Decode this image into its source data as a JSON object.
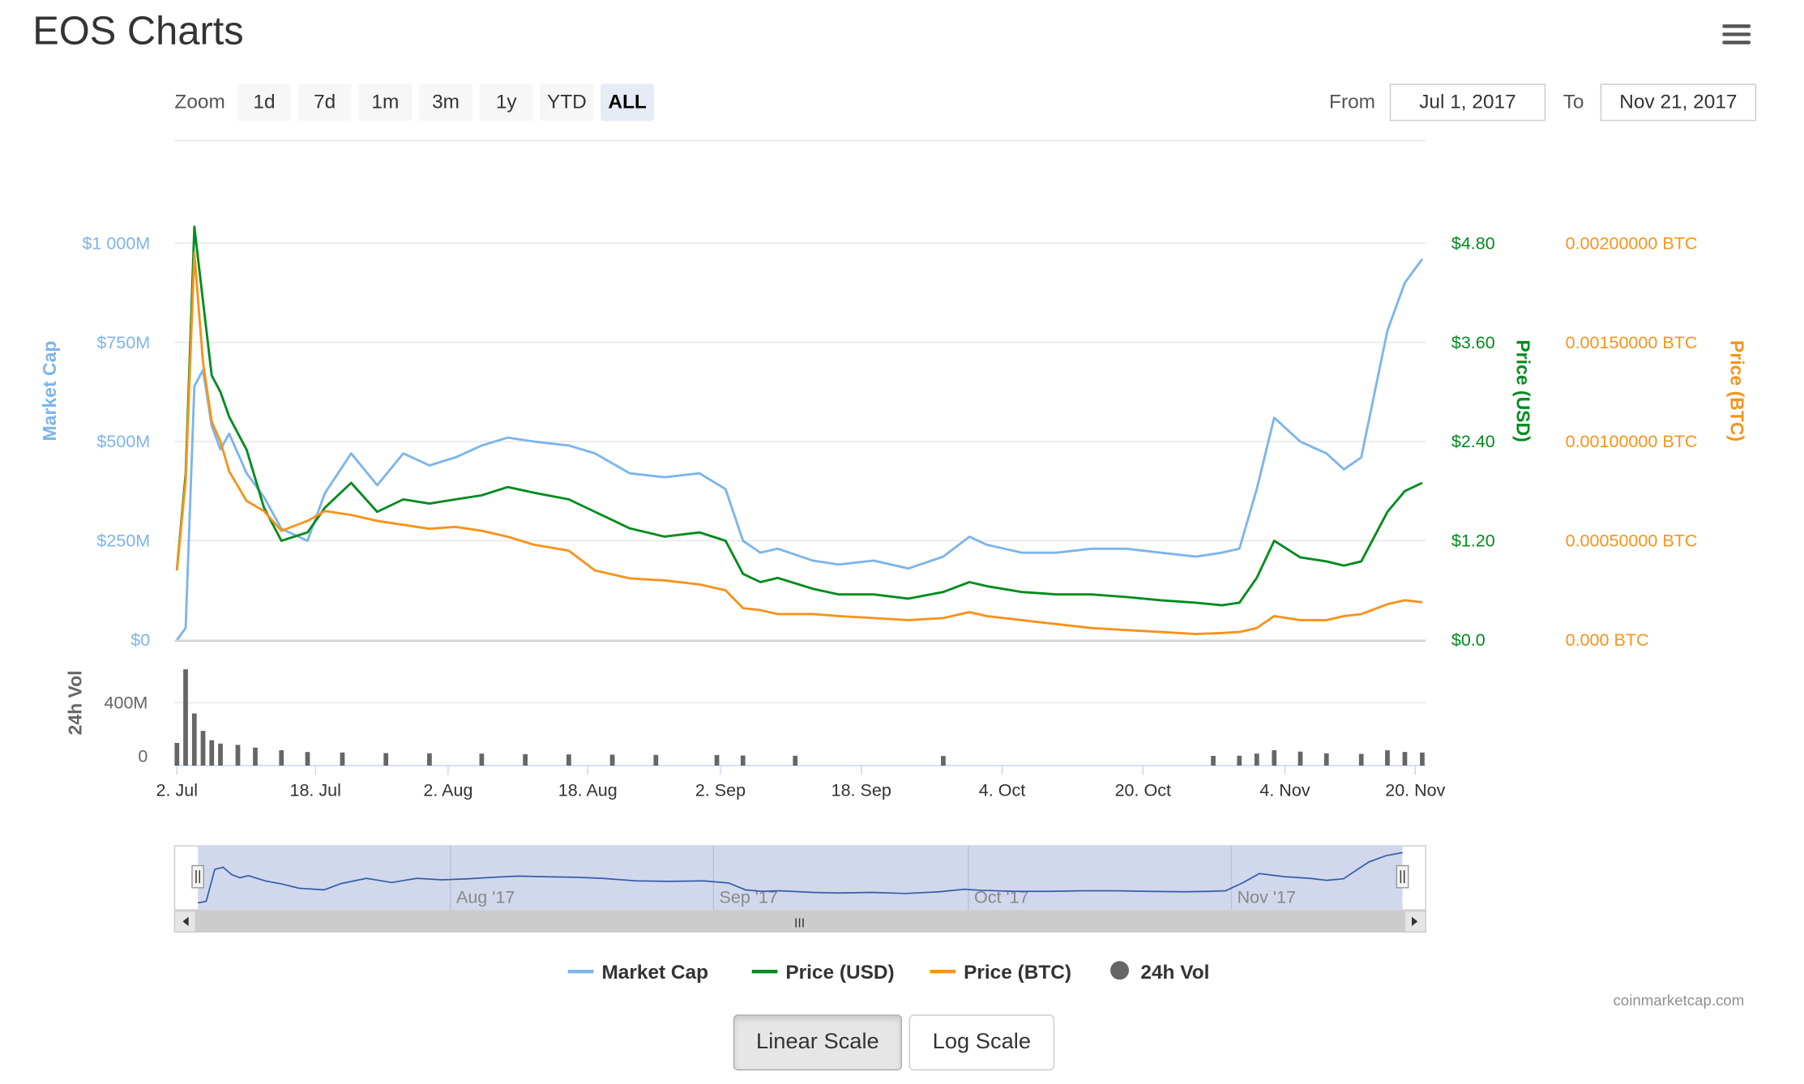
{
  "header": {
    "title": "EOS Charts",
    "menu_icon": "hamburger-menu-icon"
  },
  "range_selector": {
    "zoom_label": "Zoom",
    "buttons": [
      "1d",
      "7d",
      "1m",
      "3m",
      "1y",
      "YTD",
      "ALL"
    ],
    "active": "ALL",
    "from_label": "From",
    "from_value": "Jul 1, 2017",
    "to_label": "To",
    "to_value": "Nov 21, 2017"
  },
  "chart_data": {
    "type": "line",
    "x_axis": {
      "type": "datetime",
      "range": [
        "2017-07-01",
        "2017-11-21"
      ],
      "tick_labels": [
        "2. Jul",
        "18. Jul",
        "2. Aug",
        "18. Aug",
        "2. Sep",
        "18. Sep",
        "4. Oct",
        "20. Oct",
        "4. Nov",
        "20. Nov"
      ]
    },
    "y_axes": [
      {
        "title": "Market Cap",
        "range": [
          0,
          1000
        ],
        "unit": "$M",
        "tick_labels": [
          "$1 000M",
          "$750M",
          "$500M",
          "$250M",
          "$0"
        ],
        "color": "#7cb5ec",
        "position": "left"
      },
      {
        "title": "Price (USD)",
        "range": [
          0,
          4.8
        ],
        "tick_labels": [
          "$4.80",
          "$3.60",
          "$2.40",
          "$1.20",
          "$0.0"
        ],
        "color": "#008c1e",
        "position": "right"
      },
      {
        "title": "Price (BTC)",
        "range": [
          0,
          0.002
        ],
        "tick_labels": [
          "0.00200000 BTC",
          "0.00150000 BTC",
          "0.00100000 BTC",
          "0.00050000 BTC",
          "0.000 BTC"
        ],
        "color": "#f7931a",
        "position": "right"
      },
      {
        "title": "24h Vol",
        "range": [
          0,
          600
        ],
        "unit": "M",
        "tick_labels": [
          "400M",
          "0"
        ],
        "color": "#666666",
        "position": "left"
      }
    ],
    "grid": true,
    "legend_position": "bottom-center",
    "series": [
      {
        "name": "Market Cap",
        "color": "#7cb5ec",
        "axis": 0,
        "x": [
          "2017-07-01",
          "2017-07-02",
          "2017-07-03",
          "2017-07-04",
          "2017-07-05",
          "2017-07-06",
          "2017-07-07",
          "2017-07-09",
          "2017-07-11",
          "2017-07-13",
          "2017-07-16",
          "2017-07-18",
          "2017-07-21",
          "2017-07-24",
          "2017-07-27",
          "2017-07-30",
          "2017-08-02",
          "2017-08-05",
          "2017-08-08",
          "2017-08-11",
          "2017-08-15",
          "2017-08-18",
          "2017-08-22",
          "2017-08-26",
          "2017-08-30",
          "2017-09-02",
          "2017-09-04",
          "2017-09-06",
          "2017-09-08",
          "2017-09-12",
          "2017-09-15",
          "2017-09-19",
          "2017-09-23",
          "2017-09-27",
          "2017-09-30",
          "2017-10-02",
          "2017-10-06",
          "2017-10-10",
          "2017-10-14",
          "2017-10-18",
          "2017-10-22",
          "2017-10-26",
          "2017-10-29",
          "2017-10-31",
          "2017-11-02",
          "2017-11-04",
          "2017-11-07",
          "2017-11-10",
          "2017-11-12",
          "2017-11-14",
          "2017-11-17",
          "2017-11-19",
          "2017-11-21"
        ],
        "y": [
          0,
          30,
          640,
          680,
          540,
          480,
          520,
          420,
          360,
          280,
          250,
          370,
          470,
          390,
          470,
          440,
          460,
          490,
          510,
          500,
          490,
          470,
          420,
          410,
          420,
          380,
          250,
          220,
          230,
          200,
          190,
          200,
          180,
          210,
          260,
          240,
          220,
          220,
          230,
          230,
          220,
          210,
          220,
          230,
          380,
          560,
          500,
          470,
          430,
          460,
          780,
          900,
          960
        ]
      },
      {
        "name": "Price (USD)",
        "color": "#008c1e",
        "axis": 1,
        "x": [
          "2017-07-01",
          "2017-07-02",
          "2017-07-03",
          "2017-07-04",
          "2017-07-05",
          "2017-07-06",
          "2017-07-07",
          "2017-07-09",
          "2017-07-11",
          "2017-07-13",
          "2017-07-16",
          "2017-07-18",
          "2017-07-21",
          "2017-07-24",
          "2017-07-27",
          "2017-07-30",
          "2017-08-02",
          "2017-08-05",
          "2017-08-08",
          "2017-08-11",
          "2017-08-15",
          "2017-08-18",
          "2017-08-22",
          "2017-08-26",
          "2017-08-30",
          "2017-09-02",
          "2017-09-04",
          "2017-09-06",
          "2017-09-08",
          "2017-09-12",
          "2017-09-15",
          "2017-09-19",
          "2017-09-23",
          "2017-09-27",
          "2017-09-30",
          "2017-10-02",
          "2017-10-06",
          "2017-10-10",
          "2017-10-14",
          "2017-10-18",
          "2017-10-22",
          "2017-10-26",
          "2017-10-29",
          "2017-10-31",
          "2017-11-02",
          "2017-11-04",
          "2017-11-07",
          "2017-11-10",
          "2017-11-12",
          "2017-11-14",
          "2017-11-17",
          "2017-11-19",
          "2017-11-21"
        ],
        "y": [
          0.85,
          2.0,
          5.0,
          4.1,
          3.2,
          3.0,
          2.7,
          2.3,
          1.6,
          1.2,
          1.3,
          1.6,
          1.9,
          1.55,
          1.7,
          1.65,
          1.7,
          1.75,
          1.85,
          1.78,
          1.7,
          1.55,
          1.35,
          1.25,
          1.3,
          1.2,
          0.8,
          0.7,
          0.75,
          0.62,
          0.55,
          0.55,
          0.5,
          0.58,
          0.7,
          0.65,
          0.58,
          0.55,
          0.55,
          0.52,
          0.48,
          0.45,
          0.42,
          0.45,
          0.75,
          1.2,
          1.0,
          0.95,
          0.9,
          0.95,
          1.55,
          1.8,
          1.9
        ]
      },
      {
        "name": "Price (BTC)",
        "color": "#f7931a",
        "axis": 2,
        "x": [
          "2017-07-01",
          "2017-07-02",
          "2017-07-03",
          "2017-07-04",
          "2017-07-05",
          "2017-07-06",
          "2017-07-07",
          "2017-07-09",
          "2017-07-11",
          "2017-07-13",
          "2017-07-16",
          "2017-07-18",
          "2017-07-21",
          "2017-07-24",
          "2017-07-27",
          "2017-07-30",
          "2017-08-02",
          "2017-08-05",
          "2017-08-08",
          "2017-08-11",
          "2017-08-15",
          "2017-08-18",
          "2017-08-22",
          "2017-08-26",
          "2017-08-30",
          "2017-09-02",
          "2017-09-04",
          "2017-09-06",
          "2017-09-08",
          "2017-09-12",
          "2017-09-15",
          "2017-09-19",
          "2017-09-23",
          "2017-09-27",
          "2017-09-30",
          "2017-10-02",
          "2017-10-06",
          "2017-10-10",
          "2017-10-14",
          "2017-10-18",
          "2017-10-22",
          "2017-10-26",
          "2017-10-29",
          "2017-10-31",
          "2017-11-02",
          "2017-11-04",
          "2017-11-07",
          "2017-11-10",
          "2017-11-12",
          "2017-11-14",
          "2017-11-17",
          "2017-11-19",
          "2017-11-21"
        ],
        "y": [
          0.00035,
          0.0008,
          0.00195,
          0.0014,
          0.0011,
          0.001,
          0.00085,
          0.0007,
          0.00065,
          0.00055,
          0.0006,
          0.00065,
          0.00063,
          0.0006,
          0.00058,
          0.00056,
          0.00057,
          0.00055,
          0.00052,
          0.00048,
          0.00045,
          0.00035,
          0.00031,
          0.0003,
          0.00028,
          0.00025,
          0.00016,
          0.00015,
          0.00013,
          0.00013,
          0.00012,
          0.00011,
          0.0001,
          0.00011,
          0.00014,
          0.00012,
          0.0001,
          8e-05,
          6e-05,
          5e-05,
          4e-05,
          3e-05,
          3.5e-05,
          4e-05,
          6e-05,
          0.00012,
          0.0001,
          0.0001,
          0.00012,
          0.00013,
          0.00018,
          0.0002,
          0.00019
        ]
      },
      {
        "name": "24h Vol",
        "color": "#666666",
        "axis": 3,
        "type": "column",
        "x": [
          "2017-07-01",
          "2017-07-02",
          "2017-07-03",
          "2017-07-04",
          "2017-07-05",
          "2017-07-06",
          "2017-07-08",
          "2017-07-10",
          "2017-07-13",
          "2017-07-16",
          "2017-07-20",
          "2017-07-25",
          "2017-07-30",
          "2017-08-05",
          "2017-08-10",
          "2017-08-15",
          "2017-08-20",
          "2017-08-25",
          "2017-09-01",
          "2017-09-04",
          "2017-09-10",
          "2017-09-27",
          "2017-10-28",
          "2017-10-31",
          "2017-11-02",
          "2017-11-04",
          "2017-11-07",
          "2017-11-10",
          "2017-11-14",
          "2017-11-17",
          "2017-11-19",
          "2017-11-21"
        ],
        "y": [
          100,
          650,
          320,
          190,
          120,
          95,
          85,
          65,
          45,
          32,
          28,
          24,
          22,
          20,
          16,
          14,
          12,
          10,
          9,
          6,
          4,
          2,
          3,
          4,
          20,
          45,
          35,
          22,
          18,
          45,
          32,
          28
        ]
      }
    ]
  },
  "navigator": {
    "labels": [
      "Aug '17",
      "Sep '17",
      "Oct '17",
      "Nov '17"
    ],
    "grip_icon": "scrollbar-grip-icon",
    "left_arrow": "scroll-left-arrow-icon",
    "right_arrow": "scroll-right-arrow-icon"
  },
  "legend": {
    "items": [
      {
        "label": "Market Cap",
        "color": "#7cb5ec",
        "symbol": "line"
      },
      {
        "label": "Price (USD)",
        "color": "#008c1e",
        "symbol": "line"
      },
      {
        "label": "Price (BTC)",
        "color": "#f7931a",
        "symbol": "line"
      },
      {
        "label": "24h Vol",
        "color": "#666666",
        "symbol": "circle"
      }
    ]
  },
  "credit": "coinmarketcap.com",
  "scale_buttons": {
    "linear": "Linear Scale",
    "log": "Log Scale",
    "active": "linear"
  }
}
